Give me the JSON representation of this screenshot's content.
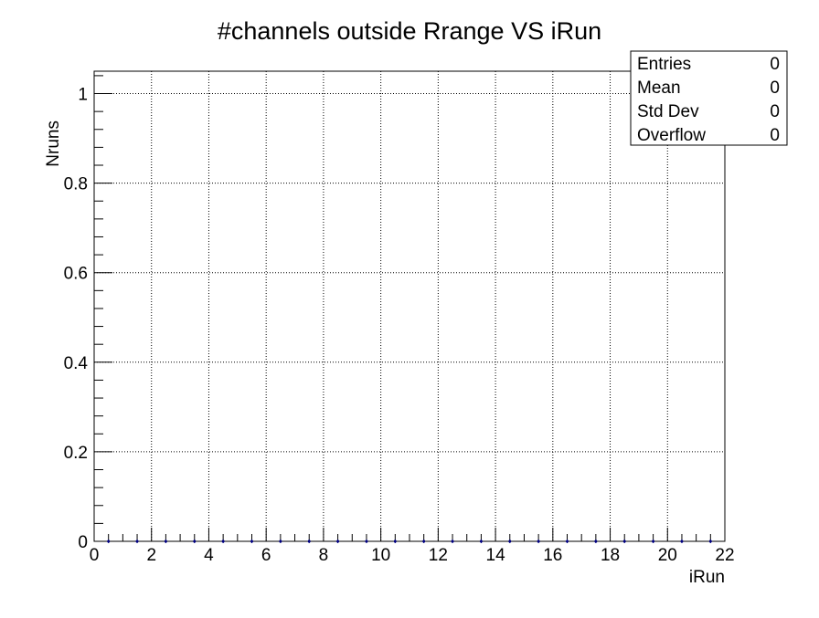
{
  "chart_data": {
    "type": "scatter",
    "title": "#channels outside Rrange VS iRun",
    "xlabel": "iRun",
    "ylabel": "Nruns",
    "xlim": [
      0,
      22
    ],
    "ylim": [
      0,
      1.05
    ],
    "x_ticks": [
      0,
      2,
      4,
      6,
      8,
      10,
      12,
      14,
      16,
      18,
      20,
      22
    ],
    "y_ticks": [
      0,
      0.2,
      0.4,
      0.6,
      0.8,
      1
    ],
    "y_tick_labels": [
      "0",
      "0.2",
      "0.4",
      "0.6",
      "0.8",
      "1"
    ],
    "grid": true,
    "series": [
      {
        "x": [
          0.5,
          1.5,
          2.5,
          3.5,
          4.5,
          5.5,
          6.5,
          7.5,
          8.5,
          9.5,
          10.5,
          11.5,
          12.5,
          13.5,
          14.5,
          15.5,
          16.5,
          17.5,
          18.5,
          19.5,
          20.5,
          21.5
        ],
        "y": [
          0,
          0,
          0,
          0,
          0,
          0,
          0,
          0,
          0,
          0,
          0,
          0,
          0,
          0,
          0,
          0,
          0,
          0,
          0,
          0,
          0,
          0
        ],
        "color": "#000080"
      }
    ],
    "stats_box": {
      "placement": "top-right",
      "rows": [
        {
          "label": "Entries",
          "value": "0"
        },
        {
          "label": "Mean",
          "value": "0"
        },
        {
          "label": "Std Dev",
          "value": "0"
        },
        {
          "label": "Overflow",
          "value": "0"
        }
      ]
    }
  }
}
